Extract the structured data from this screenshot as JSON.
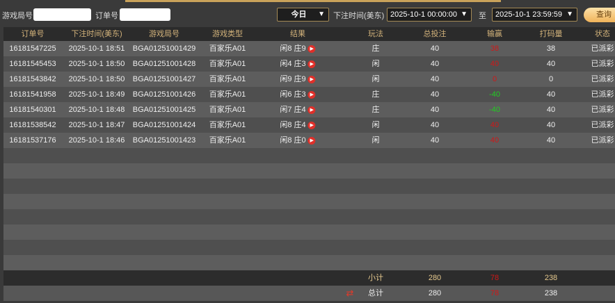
{
  "filters": {
    "game_round_label": "游戏局号",
    "game_round_value": "",
    "order_label": "订单号",
    "order_value": "",
    "period": "今日",
    "time_label": "下注时间(美东)",
    "start": "2025-10-1 00:00:00",
    "to_label": "至",
    "end": "2025-10-1 23:59:59",
    "query_button": "查询"
  },
  "columns": [
    "订单号",
    "下注时间(美东)",
    "游戏局号",
    "游戏类型",
    "结果",
    "玩法",
    "总投注",
    "输赢",
    "打码量",
    "状态"
  ],
  "rows": [
    {
      "order": "16181547225",
      "time": "2025-10-1 18:51",
      "round": "BGA01251001429",
      "type": "百家乐A01",
      "result": "闲8 庄9",
      "play": "庄",
      "bet": "40",
      "win": "38",
      "win_color": "red",
      "code": "38",
      "status": "已派彩"
    },
    {
      "order": "16181545453",
      "time": "2025-10-1 18:50",
      "round": "BGA01251001428",
      "type": "百家乐A01",
      "result": "闲4 庄3",
      "play": "闲",
      "bet": "40",
      "win": "40",
      "win_color": "red",
      "code": "40",
      "status": "已派彩"
    },
    {
      "order": "16181543842",
      "time": "2025-10-1 18:50",
      "round": "BGA01251001427",
      "type": "百家乐A01",
      "result": "闲9 庄9",
      "play": "闲",
      "bet": "40",
      "win": "0",
      "win_color": "red",
      "code": "0",
      "status": "已派彩"
    },
    {
      "order": "16181541958",
      "time": "2025-10-1 18:49",
      "round": "BGA01251001426",
      "type": "百家乐A01",
      "result": "闲6 庄3",
      "play": "庄",
      "bet": "40",
      "win": "-40",
      "win_color": "green",
      "code": "40",
      "status": "已派彩"
    },
    {
      "order": "16181540301",
      "time": "2025-10-1 18:48",
      "round": "BGA01251001425",
      "type": "百家乐A01",
      "result": "闲7 庄4",
      "play": "庄",
      "bet": "40",
      "win": "-40",
      "win_color": "green",
      "code": "40",
      "status": "已派彩"
    },
    {
      "order": "16181538542",
      "time": "2025-10-1 18:47",
      "round": "BGA01251001424",
      "type": "百家乐A01",
      "result": "闲8 庄4",
      "play": "闲",
      "bet": "40",
      "win": "40",
      "win_color": "red",
      "code": "40",
      "status": "已派彩"
    },
    {
      "order": "16181537176",
      "time": "2025-10-1 18:46",
      "round": "BGA01251001423",
      "type": "百家乐A01",
      "result": "闲8 庄0",
      "play": "闲",
      "bet": "40",
      "win": "40",
      "win_color": "red",
      "code": "40",
      "status": "已派彩"
    }
  ],
  "subtotal": {
    "label": "小计",
    "bet": "280",
    "win": "78",
    "code": "238"
  },
  "total": {
    "label": "总计",
    "bet": "280",
    "win": "78",
    "code": "238"
  },
  "colors": {
    "win_positive": "#d01818",
    "win_negative": "#22cc22",
    "header_text": "#d2b27a"
  }
}
